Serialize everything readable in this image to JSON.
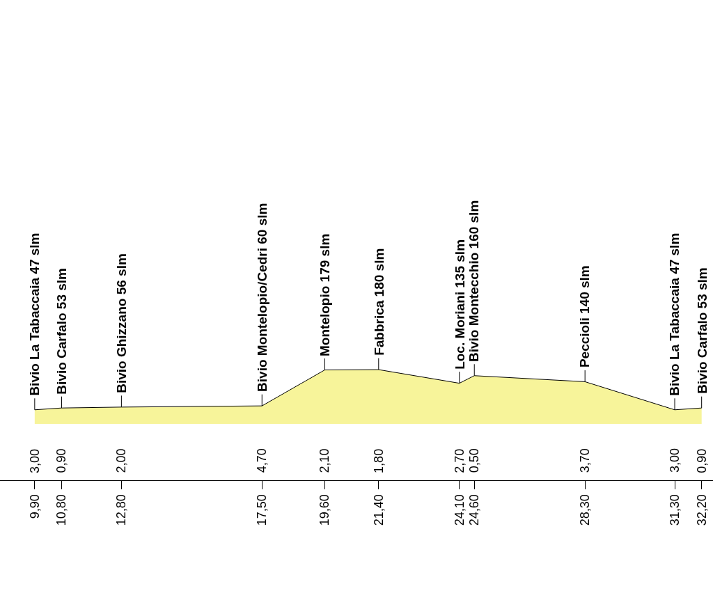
{
  "chart_data": {
    "type": "area",
    "x": [
      9.9,
      10.8,
      12.8,
      17.5,
      19.6,
      21.4,
      24.1,
      24.6,
      28.3,
      31.3,
      32.2
    ],
    "values": [
      47,
      53,
      56,
      60,
      179,
      180,
      135,
      160,
      140,
      47,
      53
    ],
    "value_labels": [
      "Bivio La Tabaccaia 47 slm",
      "Bivio Carfalo 53 slm",
      "Bivio Ghizzano 56 slm",
      "Bivio Montelopio/Cedri 60 slm",
      "Montelopio 179 slm",
      "Fabbrica 180 slm",
      "Loc. Moriani 135 slm",
      "Bivio Montecchio 160 slm",
      "Peccioli 140 slm",
      "Bivio La Tabaccaia 47 slm",
      "Bivio Carfalo 53 slm"
    ],
    "color": "#f7f49a",
    "xlim": [
      8.74,
      32.58
    ],
    "xticks": [
      {
        "value": 9.9,
        "label": "9,90"
      },
      {
        "value": 10.8,
        "label": "10,80"
      },
      {
        "value": 12.8,
        "label": "12,80"
      },
      {
        "value": 17.5,
        "label": "17,50"
      },
      {
        "value": 19.6,
        "label": "19,60"
      },
      {
        "value": 21.4,
        "label": "21,40"
      },
      {
        "value": 24.1,
        "label": "24,10"
      },
      {
        "value": 24.6,
        "label": "24,60"
      },
      {
        "value": 28.3,
        "label": "28,30"
      },
      {
        "value": 31.3,
        "label": "31,30"
      },
      {
        "value": 32.2,
        "label": "32,20"
      }
    ],
    "annotations": [
      "3,00",
      "0,90",
      "2,00",
      "4,70",
      "2,10",
      "1,80",
      "2,70",
      "0,50",
      "3,70",
      "3,00",
      "0,90"
    ],
    "legend": false,
    "marker": "none"
  }
}
